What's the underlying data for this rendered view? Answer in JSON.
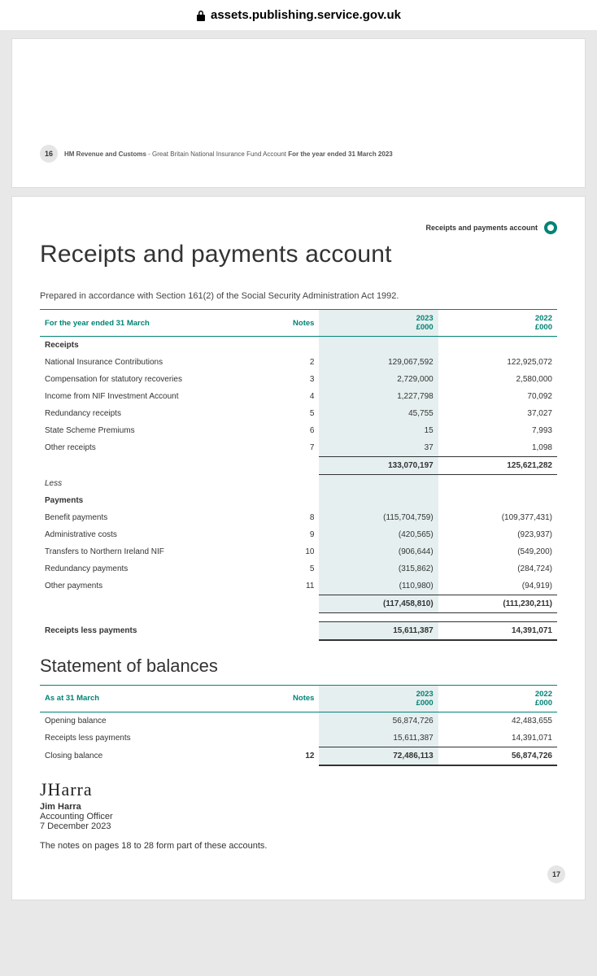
{
  "browser": {
    "url": "assets.publishing.service.gov.uk"
  },
  "page16": {
    "number": "16",
    "org": "HM Revenue and Customs",
    "doc": " - Great Britain National Insurance Fund Account ",
    "period": "For the year ended 31 March 2023"
  },
  "page17": {
    "section_label": "Receipts and payments account",
    "title": "Receipts and payments account",
    "intro": "Prepared in accordance with Section 161(2) of the Social Security Administration Act 1992.",
    "table1": {
      "header_period": "For the year ended 31 March",
      "col_notes": "Notes",
      "col_y1_a": "2023",
      "col_y1_b": "£000",
      "col_y2_a": "2022",
      "col_y2_b": "£000",
      "section_receipts": "Receipts",
      "rows_receipts": [
        {
          "label": "National Insurance Contributions",
          "note": "2",
          "y1": "129,067,592",
          "y2": "122,925,072"
        },
        {
          "label": "Compensation for statutory recoveries",
          "note": "3",
          "y1": "2,729,000",
          "y2": "2,580,000"
        },
        {
          "label": "Income from NIF Investment Account",
          "note": "4",
          "y1": "1,227,798",
          "y2": "70,092"
        },
        {
          "label": "Redundancy receipts",
          "note": "5",
          "y1": "45,755",
          "y2": "37,027"
        },
        {
          "label": "State Scheme Premiums",
          "note": "6",
          "y1": "15",
          "y2": "7,993"
        },
        {
          "label": "Other receipts",
          "note": "7",
          "y1": "37",
          "y2": "1,098"
        }
      ],
      "subtotal_receipts": {
        "y1": "133,070,197",
        "y2": "125,621,282"
      },
      "less": "Less",
      "section_payments": "Payments",
      "rows_payments": [
        {
          "label": "Benefit payments",
          "note": "8",
          "y1": "(115,704,759)",
          "y2": "(109,377,431)"
        },
        {
          "label": "Administrative costs",
          "note": "9",
          "y1": "(420,565)",
          "y2": "(923,937)"
        },
        {
          "label": "Transfers to Northern Ireland NIF",
          "note": "10",
          "y1": "(906,644)",
          "y2": "(549,200)"
        },
        {
          "label": "Redundancy payments",
          "note": "5",
          "y1": "(315,862)",
          "y2": "(284,724)"
        },
        {
          "label": "Other payments",
          "note": "11",
          "y1": "(110,980)",
          "y2": "(94,919)"
        }
      ],
      "subtotal_payments": {
        "y1": "(117,458,810)",
        "y2": "(111,230,211)"
      },
      "net_label": "Receipts less payments",
      "net": {
        "y1": "15,611,387",
        "y2": "14,391,071"
      }
    },
    "subtitle": "Statement of balances",
    "table2": {
      "header_period": "As at 31 March",
      "rows": [
        {
          "label": "Opening balance",
          "note": "",
          "y1": "56,874,726",
          "y2": "42,483,655"
        },
        {
          "label": "Receipts less payments",
          "note": "",
          "y1": "15,611,387",
          "y2": "14,391,071"
        }
      ],
      "closing": {
        "label": "Closing balance",
        "note": "12",
        "y1": "72,486,113",
        "y2": "56,874,726"
      }
    },
    "signature": {
      "scribble": "JHarra",
      "name": "Jim Harra",
      "title": "Accounting Officer",
      "date": "7 December 2023"
    },
    "notes_line": "The notes on pages 18 to 28 form part of these accounts.",
    "number": "17"
  },
  "colors": {
    "teal": "#008375",
    "highlight": "#e6efef",
    "page_bg": "#ffffff",
    "body_bg": "#e8e8e8"
  }
}
